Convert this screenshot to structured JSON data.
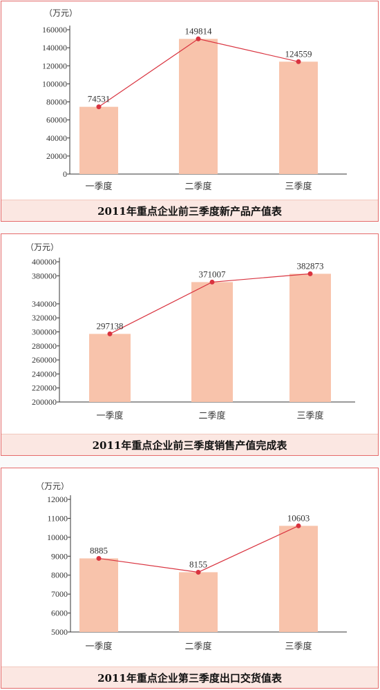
{
  "colors": {
    "bar": "#f8c3ab",
    "line": "#d9333f",
    "dot": "#d9333f",
    "border": "#e56a6a",
    "caption_bg": "#fbe7e2"
  },
  "chart_data": [
    {
      "type": "bar",
      "title": "2011年重点企业前三季度新产品产值表",
      "unit": "（万元）",
      "categories": [
        "一季度",
        "二季度",
        "三季度"
      ],
      "values": [
        74531,
        149814,
        124559
      ],
      "labels": [
        "74531",
        "149814",
        "124559"
      ],
      "ylim": [
        0,
        160000
      ],
      "yticks": [
        0,
        20000,
        40000,
        60000,
        80000,
        100000,
        120000,
        140000,
        160000
      ],
      "ytick_labels": [
        "0",
        "20000",
        "40000",
        "60000",
        "80000",
        "100000",
        "120000",
        "140000",
        "160000"
      ],
      "line_overlay": true
    },
    {
      "type": "bar",
      "title": "2011年重点企业前三季度销售产值完成表",
      "unit": "（万元）",
      "categories": [
        "一季度",
        "二季度",
        "三季度"
      ],
      "values": [
        297138,
        371007,
        382873
      ],
      "labels": [
        "297138",
        "371007",
        "382873"
      ],
      "ylim": [
        200000,
        400000
      ],
      "yticks": [
        200000,
        220000,
        240000,
        260000,
        280000,
        300000,
        320000,
        340000,
        380000,
        400000
      ],
      "ytick_labels": [
        "200000",
        "220000",
        "240000",
        "260000",
        "280000",
        "300000",
        "320000",
        "340000",
        "380000",
        "400000"
      ],
      "line_overlay": true
    },
    {
      "type": "bar",
      "title": "2011年重点企业第三季度出口交货值表",
      "unit": "（万元）",
      "categories": [
        "一季度",
        "二季度",
        "三季度"
      ],
      "values": [
        8885,
        8155,
        10603
      ],
      "labels": [
        "8885",
        "8155",
        "10603"
      ],
      "ylim": [
        5000,
        12000
      ],
      "yticks": [
        5000,
        6000,
        7000,
        8000,
        9000,
        10000,
        11000,
        12000
      ],
      "ytick_labels": [
        "5000",
        "6000",
        "7000",
        "8000",
        "9000",
        "10000",
        "11000",
        "12000"
      ],
      "line_overlay": true
    }
  ]
}
